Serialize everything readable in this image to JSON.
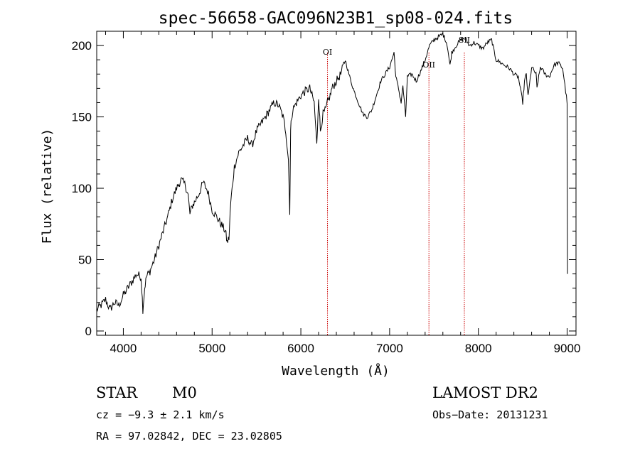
{
  "chart_data": {
    "type": "line",
    "title": "spec-56658-GAC096N23B1_sp08-024.fits",
    "xlabel": "Wavelength (Å)",
    "ylabel": "Flux (relative)",
    "xlim": [
      3700,
      9100
    ],
    "ylim": [
      -3,
      210
    ],
    "x_ticks": [
      4000,
      5000,
      6000,
      7000,
      8000,
      9000
    ],
    "y_ticks": [
      0,
      50,
      100,
      150,
      200
    ],
    "grid": false,
    "series": [
      {
        "x": [
          3700,
          3750,
          3800,
          3850,
          3900,
          3950,
          4000,
          4050,
          4100,
          4150,
          4200,
          4220,
          4240,
          4260,
          4300,
          4350,
          4400,
          4450,
          4500,
          4550,
          4600,
          4650,
          4700,
          4730,
          4750,
          4780,
          4800,
          4850,
          4900,
          4950,
          5000,
          5050,
          5100,
          5150,
          5170,
          5190,
          5210,
          5250,
          5300,
          5350,
          5400,
          5450,
          5500,
          5550,
          5600,
          5650,
          5700,
          5750,
          5800,
          5830,
          5860,
          5875,
          5885,
          5895,
          5910,
          5950,
          6000,
          6050,
          6100,
          6150,
          6180,
          6200,
          6220,
          6250,
          6280,
          6300,
          6330,
          6350,
          6400,
          6450,
          6500,
          6550,
          6600,
          6650,
          6700,
          6750,
          6800,
          6850,
          6900,
          6950,
          7000,
          7050,
          7070,
          7100,
          7130,
          7150,
          7180,
          7200,
          7250,
          7300,
          7350,
          7400,
          7450,
          7500,
          7550,
          7600,
          7630,
          7650,
          7680,
          7700,
          7750,
          7800,
          7850,
          7900,
          7950,
          8000,
          8050,
          8100,
          8150,
          8180,
          8200,
          8250,
          8300,
          8350,
          8400,
          8450,
          8500,
          8520,
          8540,
          8560,
          8600,
          8650,
          8660,
          8680,
          8700,
          8750,
          8800,
          8850,
          8900,
          8950,
          9000,
          9005
        ],
        "y": [
          15,
          18,
          22,
          15,
          20,
          18,
          25,
          30,
          35,
          40,
          38,
          15,
          30,
          38,
          42,
          50,
          60,
          70,
          80,
          92,
          100,
          106,
          102,
          95,
          82,
          88,
          90,
          96,
          104,
          98,
          85,
          80,
          75,
          70,
          62,
          65,
          90,
          115,
          125,
          130,
          135,
          130,
          140,
          145,
          150,
          155,
          160,
          158,
          150,
          140,
          120,
          84,
          140,
          150,
          155,
          160,
          165,
          168,
          170,
          160,
          130,
          165,
          140,
          152,
          155,
          160,
          165,
          170,
          175,
          180,
          190,
          178,
          168,
          160,
          152,
          150,
          155,
          165,
          175,
          180,
          185,
          195,
          178,
          170,
          160,
          172,
          150,
          178,
          180,
          175,
          182,
          190,
          200,
          204,
          206,
          208,
          204,
          200,
          186,
          195,
          200,
          204,
          205,
          200,
          202,
          200,
          198,
          202,
          204,
          195,
          190,
          188,
          186,
          184,
          180,
          178,
          160,
          175,
          180,
          164,
          185,
          180,
          170,
          178,
          185,
          180,
          178,
          186,
          188,
          184,
          160,
          40
        ]
      }
    ],
    "line_markers": [
      {
        "label": "OI",
        "x": 6300
      },
      {
        "label": "OII",
        "x": 7443
      },
      {
        "label": "SII",
        "x": 7842
      }
    ]
  },
  "info": {
    "class": "STAR",
    "subclass": "M0",
    "survey": "LAMOST DR2",
    "cz": "cz = −9.3 ± 2.1 km/s",
    "obs_date": "Obs−Date: 20131231",
    "radec": "RA =  97.02842, DEC =  23.02805"
  },
  "colors": {
    "line": "#000000",
    "marker": "#cc0000"
  }
}
